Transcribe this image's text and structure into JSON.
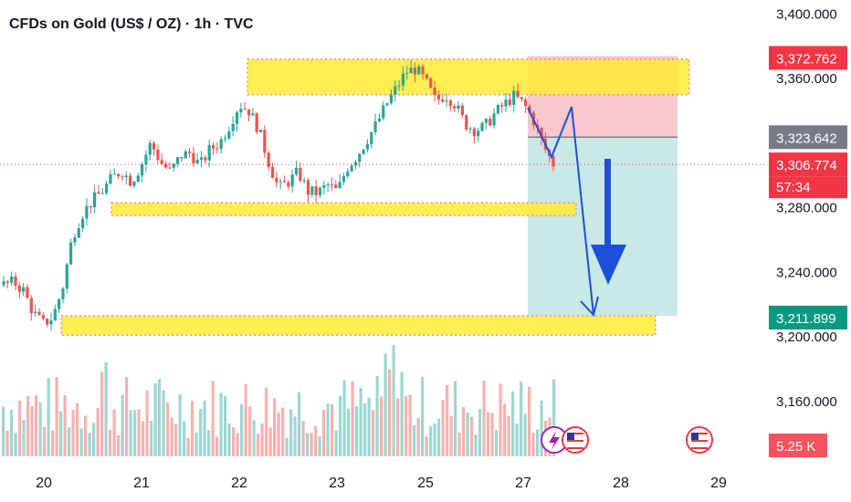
{
  "title": "CFDs on Gold (US$ / OZ) · 1h · TVC",
  "colors": {
    "up": "#26a69a",
    "down": "#ef5350",
    "zone": "#ffeb3b",
    "zone_border": "#e57fb0",
    "stop_zone": "#f7b5bf",
    "target_zone": "#b2dfdb",
    "projection": "#1e4fd8"
  },
  "chart_data": {
    "type": "candlestick",
    "symbol": "CFDs on Gold (US$ / OZ)",
    "timeframe": "1h",
    "source": "TVC",
    "x_ticks": [
      "20",
      "21",
      "22",
      "23",
      "25",
      "27",
      "28",
      "29"
    ],
    "y_ticks": [
      "3,400.000",
      "3,360.000",
      "3,280.000",
      "3,240.000",
      "3,200.000",
      "3,160.000"
    ],
    "y_tick_values": [
      3400,
      3360,
      3280,
      3240,
      3200,
      3160
    ],
    "ylim": [
      3142,
      3403
    ],
    "price_path": [
      3232,
      3234,
      3229,
      3215,
      3208,
      3212,
      3230,
      3262,
      3276,
      3284,
      3290,
      3298,
      3303,
      3296,
      3306,
      3320,
      3308,
      3302,
      3312,
      3314,
      3306,
      3316,
      3320,
      3331,
      3344,
      3340,
      3328,
      3308,
      3292,
      3296,
      3302,
      3290,
      3289,
      3294,
      3290,
      3305,
      3312,
      3322,
      3332,
      3344,
      3354,
      3364,
      3366,
      3358,
      3346,
      3350,
      3344,
      3332,
      3328,
      3330,
      3338,
      3344,
      3349,
      3344,
      3334,
      3318,
      3307
    ],
    "zones": [
      {
        "name": "upper resistance zone",
        "from": 3350,
        "to": 3372
      },
      {
        "name": "middle support zone",
        "from": 3275,
        "to": 3283
      },
      {
        "name": "lower support zone",
        "from": 3201,
        "to": 3213
      }
    ],
    "position": {
      "type": "short",
      "entry": 3323.642,
      "stop": 3372.762,
      "target": 3211.899
    },
    "labels": [
      {
        "text": "3,372.762",
        "value": 3372.762,
        "color": "#f23645"
      },
      {
        "text": "3,323.642",
        "value": 3323.642,
        "color": "#787b86"
      },
      {
        "text": "3,306.774",
        "value": 3306.774,
        "color": "#f23645"
      },
      {
        "text": "3,211.899",
        "value": 3211.899,
        "color": "#089981"
      }
    ],
    "countdown": "57:34",
    "last_price": 3306.774,
    "volume_label": "5.25 K",
    "events": [
      "flash-event-icon",
      "us-flag-icon",
      "us-flag-icon"
    ]
  }
}
